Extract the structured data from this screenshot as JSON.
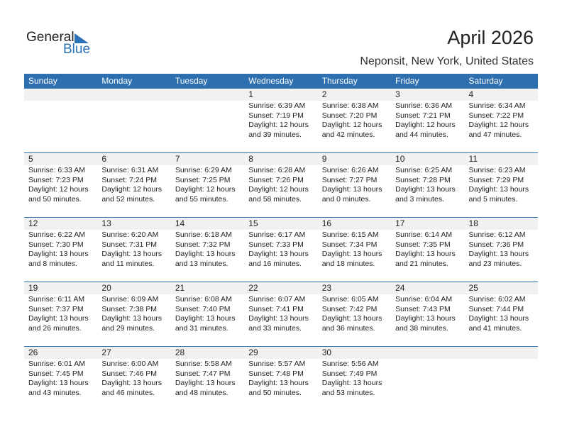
{
  "logo": {
    "text1": "General",
    "text2": "Blue"
  },
  "title": "April 2026",
  "location": "Neponsit, New York, United States",
  "colors": {
    "accent": "#2e6fb0",
    "band": "#f1f1f1"
  },
  "weekdays": [
    "Sunday",
    "Monday",
    "Tuesday",
    "Wednesday",
    "Thursday",
    "Friday",
    "Saturday"
  ],
  "weeks": [
    [
      null,
      null,
      null,
      {
        "day": "1",
        "sunrise": "Sunrise: 6:39 AM",
        "sunset": "Sunset: 7:19 PM",
        "daylight1": "Daylight: 12 hours",
        "daylight2": "and 39 minutes."
      },
      {
        "day": "2",
        "sunrise": "Sunrise: 6:38 AM",
        "sunset": "Sunset: 7:20 PM",
        "daylight1": "Daylight: 12 hours",
        "daylight2": "and 42 minutes."
      },
      {
        "day": "3",
        "sunrise": "Sunrise: 6:36 AM",
        "sunset": "Sunset: 7:21 PM",
        "daylight1": "Daylight: 12 hours",
        "daylight2": "and 44 minutes."
      },
      {
        "day": "4",
        "sunrise": "Sunrise: 6:34 AM",
        "sunset": "Sunset: 7:22 PM",
        "daylight1": "Daylight: 12 hours",
        "daylight2": "and 47 minutes."
      }
    ],
    [
      {
        "day": "5",
        "sunrise": "Sunrise: 6:33 AM",
        "sunset": "Sunset: 7:23 PM",
        "daylight1": "Daylight: 12 hours",
        "daylight2": "and 50 minutes."
      },
      {
        "day": "6",
        "sunrise": "Sunrise: 6:31 AM",
        "sunset": "Sunset: 7:24 PM",
        "daylight1": "Daylight: 12 hours",
        "daylight2": "and 52 minutes."
      },
      {
        "day": "7",
        "sunrise": "Sunrise: 6:29 AM",
        "sunset": "Sunset: 7:25 PM",
        "daylight1": "Daylight: 12 hours",
        "daylight2": "and 55 minutes."
      },
      {
        "day": "8",
        "sunrise": "Sunrise: 6:28 AM",
        "sunset": "Sunset: 7:26 PM",
        "daylight1": "Daylight: 12 hours",
        "daylight2": "and 58 minutes."
      },
      {
        "day": "9",
        "sunrise": "Sunrise: 6:26 AM",
        "sunset": "Sunset: 7:27 PM",
        "daylight1": "Daylight: 13 hours",
        "daylight2": "and 0 minutes."
      },
      {
        "day": "10",
        "sunrise": "Sunrise: 6:25 AM",
        "sunset": "Sunset: 7:28 PM",
        "daylight1": "Daylight: 13 hours",
        "daylight2": "and 3 minutes."
      },
      {
        "day": "11",
        "sunrise": "Sunrise: 6:23 AM",
        "sunset": "Sunset: 7:29 PM",
        "daylight1": "Daylight: 13 hours",
        "daylight2": "and 5 minutes."
      }
    ],
    [
      {
        "day": "12",
        "sunrise": "Sunrise: 6:22 AM",
        "sunset": "Sunset: 7:30 PM",
        "daylight1": "Daylight: 13 hours",
        "daylight2": "and 8 minutes."
      },
      {
        "day": "13",
        "sunrise": "Sunrise: 6:20 AM",
        "sunset": "Sunset: 7:31 PM",
        "daylight1": "Daylight: 13 hours",
        "daylight2": "and 11 minutes."
      },
      {
        "day": "14",
        "sunrise": "Sunrise: 6:18 AM",
        "sunset": "Sunset: 7:32 PM",
        "daylight1": "Daylight: 13 hours",
        "daylight2": "and 13 minutes."
      },
      {
        "day": "15",
        "sunrise": "Sunrise: 6:17 AM",
        "sunset": "Sunset: 7:33 PM",
        "daylight1": "Daylight: 13 hours",
        "daylight2": "and 16 minutes."
      },
      {
        "day": "16",
        "sunrise": "Sunrise: 6:15 AM",
        "sunset": "Sunset: 7:34 PM",
        "daylight1": "Daylight: 13 hours",
        "daylight2": "and 18 minutes."
      },
      {
        "day": "17",
        "sunrise": "Sunrise: 6:14 AM",
        "sunset": "Sunset: 7:35 PM",
        "daylight1": "Daylight: 13 hours",
        "daylight2": "and 21 minutes."
      },
      {
        "day": "18",
        "sunrise": "Sunrise: 6:12 AM",
        "sunset": "Sunset: 7:36 PM",
        "daylight1": "Daylight: 13 hours",
        "daylight2": "and 23 minutes."
      }
    ],
    [
      {
        "day": "19",
        "sunrise": "Sunrise: 6:11 AM",
        "sunset": "Sunset: 7:37 PM",
        "daylight1": "Daylight: 13 hours",
        "daylight2": "and 26 minutes."
      },
      {
        "day": "20",
        "sunrise": "Sunrise: 6:09 AM",
        "sunset": "Sunset: 7:38 PM",
        "daylight1": "Daylight: 13 hours",
        "daylight2": "and 29 minutes."
      },
      {
        "day": "21",
        "sunrise": "Sunrise: 6:08 AM",
        "sunset": "Sunset: 7:40 PM",
        "daylight1": "Daylight: 13 hours",
        "daylight2": "and 31 minutes."
      },
      {
        "day": "22",
        "sunrise": "Sunrise: 6:07 AM",
        "sunset": "Sunset: 7:41 PM",
        "daylight1": "Daylight: 13 hours",
        "daylight2": "and 33 minutes."
      },
      {
        "day": "23",
        "sunrise": "Sunrise: 6:05 AM",
        "sunset": "Sunset: 7:42 PM",
        "daylight1": "Daylight: 13 hours",
        "daylight2": "and 36 minutes."
      },
      {
        "day": "24",
        "sunrise": "Sunrise: 6:04 AM",
        "sunset": "Sunset: 7:43 PM",
        "daylight1": "Daylight: 13 hours",
        "daylight2": "and 38 minutes."
      },
      {
        "day": "25",
        "sunrise": "Sunrise: 6:02 AM",
        "sunset": "Sunset: 7:44 PM",
        "daylight1": "Daylight: 13 hours",
        "daylight2": "and 41 minutes."
      }
    ],
    [
      {
        "day": "26",
        "sunrise": "Sunrise: 6:01 AM",
        "sunset": "Sunset: 7:45 PM",
        "daylight1": "Daylight: 13 hours",
        "daylight2": "and 43 minutes."
      },
      {
        "day": "27",
        "sunrise": "Sunrise: 6:00 AM",
        "sunset": "Sunset: 7:46 PM",
        "daylight1": "Daylight: 13 hours",
        "daylight2": "and 46 minutes."
      },
      {
        "day": "28",
        "sunrise": "Sunrise: 5:58 AM",
        "sunset": "Sunset: 7:47 PM",
        "daylight1": "Daylight: 13 hours",
        "daylight2": "and 48 minutes."
      },
      {
        "day": "29",
        "sunrise": "Sunrise: 5:57 AM",
        "sunset": "Sunset: 7:48 PM",
        "daylight1": "Daylight: 13 hours",
        "daylight2": "and 50 minutes."
      },
      {
        "day": "30",
        "sunrise": "Sunrise: 5:56 AM",
        "sunset": "Sunset: 7:49 PM",
        "daylight1": "Daylight: 13 hours",
        "daylight2": "and 53 minutes."
      },
      null,
      null
    ]
  ]
}
